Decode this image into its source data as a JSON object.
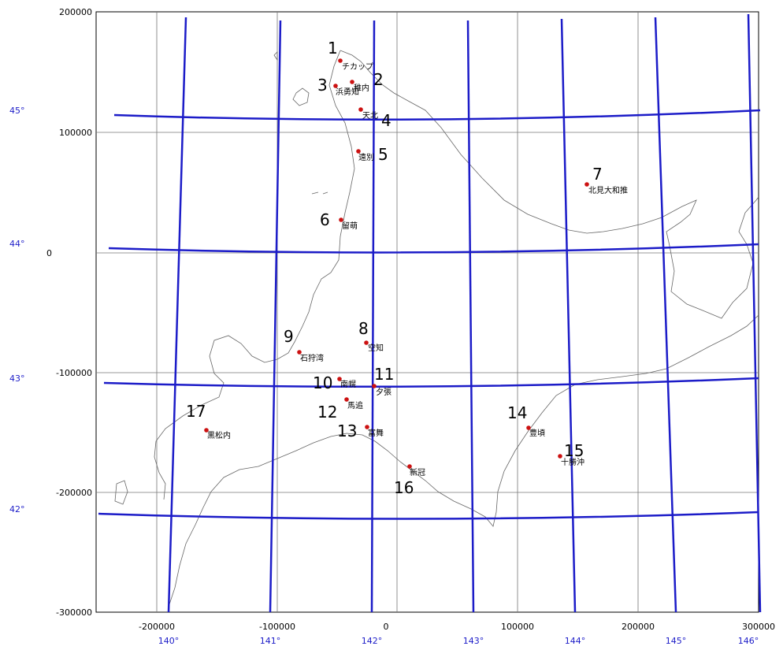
{
  "map": {
    "x_ticks": [
      "-200000",
      "-100000",
      "0",
      "100000",
      "200000",
      "300000"
    ],
    "y_ticks": [
      "200000",
      "100000",
      "0",
      "-100000",
      "-200000",
      "-300000"
    ],
    "longitudes": [
      "140°",
      "141°",
      "142°",
      "143°",
      "144°",
      "145°",
      "146°"
    ],
    "latitudes": [
      "45°",
      "44°",
      "43°",
      "42°"
    ],
    "graticule_color": "#1c1cc8",
    "marker_color": "#cc1111",
    "sites": [
      {
        "num": "1",
        "name": "チカップ"
      },
      {
        "num": "2",
        "name": "稚内"
      },
      {
        "num": "3",
        "name": "浜勇知"
      },
      {
        "num": "4",
        "name": "天北"
      },
      {
        "num": "5",
        "name": "遠別"
      },
      {
        "num": "6",
        "name": "留萌"
      },
      {
        "num": "7",
        "name": "北見大和推"
      },
      {
        "num": "8",
        "name": "空知"
      },
      {
        "num": "9",
        "name": "石狩湾"
      },
      {
        "num": "10",
        "name": "南幌"
      },
      {
        "num": "11",
        "name": "夕張"
      },
      {
        "num": "12",
        "name": "馬追"
      },
      {
        "num": "13",
        "name": "富舞"
      },
      {
        "num": "14",
        "name": "豊頃"
      },
      {
        "num": "15",
        "name": "十勝沖"
      },
      {
        "num": "16",
        "name": "新冠"
      },
      {
        "num": "17",
        "name": "黒松内"
      }
    ]
  }
}
